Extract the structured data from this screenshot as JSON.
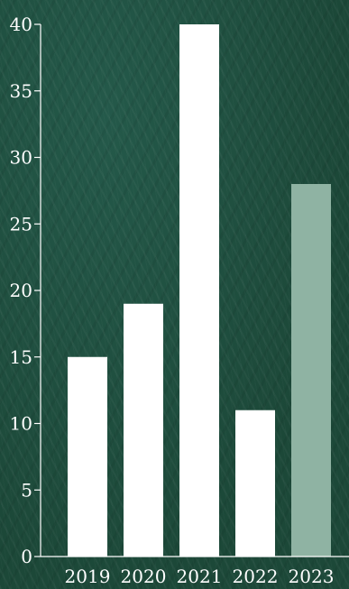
{
  "chart_data": {
    "type": "bar",
    "title": "",
    "xlabel": "",
    "ylabel": "",
    "categories": [
      "2019",
      "2020",
      "2021",
      "2022",
      "2023"
    ],
    "values": [
      15,
      19,
      40,
      11,
      28
    ],
    "ylim": [
      0,
      40
    ],
    "yticks": [
      0,
      5,
      10,
      15,
      20,
      25,
      30,
      35,
      40
    ],
    "grid": false,
    "bar_colors": [
      "#ffffff",
      "#ffffff",
      "#ffffff",
      "#ffffff",
      "#8fb3a3"
    ],
    "axis_color": "#ffffff",
    "background_color": "#1d4b3b"
  }
}
